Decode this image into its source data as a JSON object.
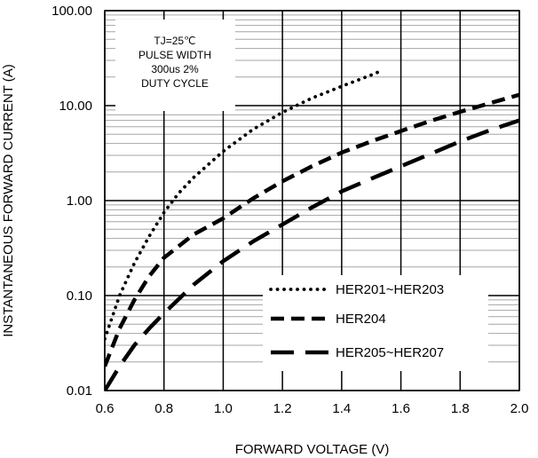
{
  "chart_data": {
    "type": "line",
    "title": "",
    "xlabel": "FORWARD VOLTAGE (V)",
    "ylabel": "INSTANTANEOUS FORWARD CURRENT (A)",
    "xlim": [
      0.6,
      2.0
    ],
    "ylim": [
      0.01,
      100
    ],
    "y_scale": "log",
    "grid": true,
    "legend_position": "bottom-right",
    "x_ticks": [
      "0.6",
      "0.8",
      "1.0",
      "1.2",
      "1.4",
      "1.6",
      "1.8",
      "2.0"
    ],
    "y_ticks": [
      "0.01",
      "0.10",
      "1.00",
      "10.00",
      "100.00"
    ],
    "annotation": [
      "TJ=25℃",
      "PULSE WIDTH",
      "300us 2%",
      "DUTY CYCLE"
    ],
    "series": [
      {
        "name": "HER201~HER203",
        "style": "dotted",
        "x": [
          0.6,
          0.65,
          0.7,
          0.75,
          0.8,
          0.85,
          0.9,
          1.0,
          1.1,
          1.2,
          1.3,
          1.4,
          1.5,
          1.53
        ],
        "y": [
          0.035,
          0.1,
          0.22,
          0.42,
          0.75,
          1.2,
          1.75,
          3.3,
          5.6,
          8.5,
          12.0,
          16.0,
          21.0,
          23.0
        ]
      },
      {
        "name": "HER204",
        "style": "dashed",
        "x": [
          0.6,
          0.65,
          0.7,
          0.75,
          0.8,
          0.9,
          1.0,
          1.1,
          1.2,
          1.3,
          1.4,
          1.5,
          1.6,
          1.7,
          1.8,
          1.9,
          2.0
        ],
        "y": [
          0.018,
          0.045,
          0.09,
          0.16,
          0.25,
          0.44,
          0.65,
          1.05,
          1.6,
          2.3,
          3.2,
          4.2,
          5.4,
          6.9,
          8.6,
          10.6,
          13.0
        ]
      },
      {
        "name": "HER205~HER207",
        "style": "longdash",
        "x": [
          0.6,
          0.65,
          0.7,
          0.75,
          0.8,
          0.9,
          1.0,
          1.1,
          1.2,
          1.3,
          1.4,
          1.5,
          1.6,
          1.7,
          1.8,
          1.9,
          2.0
        ],
        "y": [
          0.01,
          0.018,
          0.03,
          0.045,
          0.065,
          0.13,
          0.23,
          0.37,
          0.56,
          0.85,
          1.25,
          1.7,
          2.3,
          3.1,
          4.2,
          5.5,
          7.0
        ]
      }
    ]
  }
}
